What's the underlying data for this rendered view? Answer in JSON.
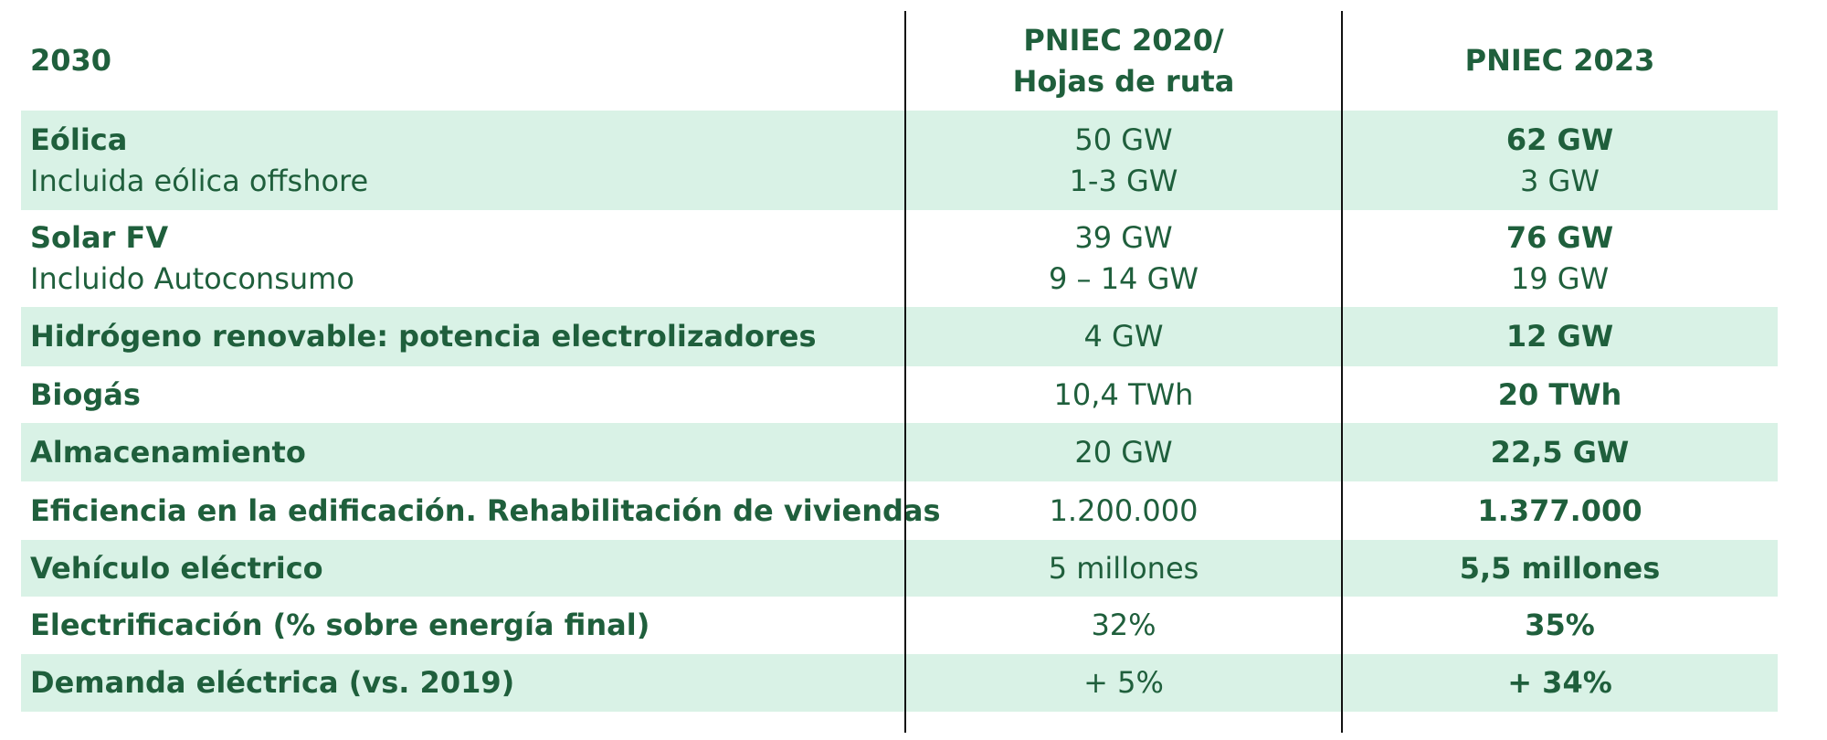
{
  "table": {
    "header": [
      [
        "2030"
      ],
      [
        "PNIEC 2020/",
        "Hojas de ruta"
      ],
      [
        "PNIEC 2023"
      ]
    ],
    "rows": [
      [
        [
          "Eólica",
          "Incluida eólica offshore"
        ],
        [
          "50 GW",
          "1-3 GW"
        ],
        [
          "62 GW",
          "3 GW"
        ]
      ],
      [
        [
          "Solar FV",
          "Incluido Autoconsumo"
        ],
        [
          "39 GW",
          "9 – 14 GW"
        ],
        [
          "76 GW",
          "19 GW"
        ]
      ],
      [
        [
          "Hidrógeno renovable: potencia electrolizadores"
        ],
        [
          "4 GW"
        ],
        [
          "12 GW"
        ]
      ],
      [
        [
          "Biogás"
        ],
        [
          "10,4 TWh"
        ],
        [
          "20 TWh"
        ]
      ],
      [
        [
          "Almacenamiento"
        ],
        [
          "20 GW"
        ],
        [
          "22,5 GW"
        ]
      ],
      [
        [
          "Eficiencia en la edificación. Rehabilitación de viviendas"
        ],
        [
          "1.200.000"
        ],
        [
          "1.377.000"
        ]
      ],
      [
        [
          "Vehículo eléctrico"
        ],
        [
          "5 millones"
        ],
        [
          "5,5 millones"
        ]
      ],
      [
        [
          "Electrificación (% sobre energía final)"
        ],
        [
          "32%"
        ],
        [
          "35%"
        ]
      ],
      [
        [
          "Demanda eléctrica (vs. 2019)"
        ],
        [
          "+ 5%"
        ],
        [
          "+ 34%"
        ]
      ]
    ]
  }
}
